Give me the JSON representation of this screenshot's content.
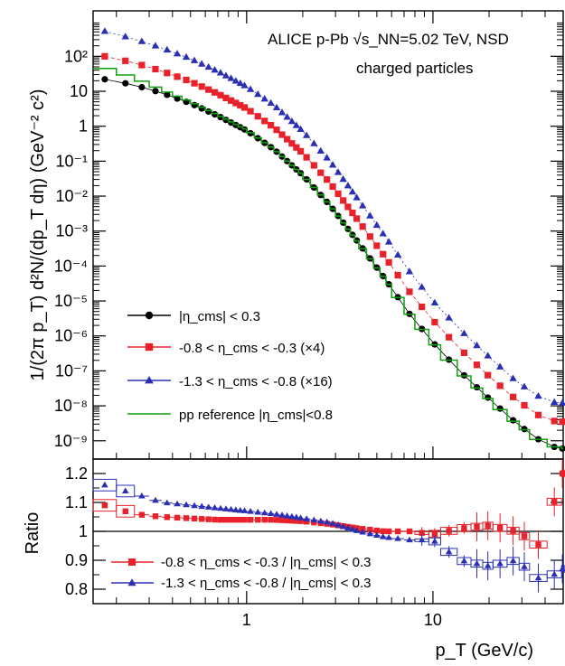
{
  "chart_data": [
    {
      "type": "scatter",
      "panel": "spectra",
      "annotation_lines": [
        "ALICE  p-Pb √s_NN=5.02 TeV, NSD",
        "charged particles"
      ],
      "ylabel": "1/(2π p_T) d²N/(dp_T dη) (GeV⁻² c²)",
      "yscale": "log",
      "xscale": "log",
      "xlim": [
        0.15,
        50
      ],
      "ylim": [
        3e-10,
        2000
      ],
      "y_tick_labels": [
        "10⁻⁹",
        "10⁻⁸",
        "10⁻⁷",
        "10⁻⁶",
        "10⁻⁵",
        "10⁻⁴",
        "10⁻³",
        "10⁻²",
        "10⁻¹",
        "1",
        "10",
        "10²"
      ],
      "legend_position": "lower-left",
      "x": [
        0.175,
        0.25,
        0.35,
        0.5,
        0.7,
        1.0,
        1.4,
        2.0,
        2.8,
        4.0,
        5.5,
        7.5,
        10,
        14,
        20,
        28,
        40,
        48
      ],
      "series": [
        {
          "name": "|η_cms| < 0.3",
          "color": "#000000",
          "marker": "circle",
          "y": [
            22,
            15,
            9,
            4.5,
            2,
            0.75,
            0.22,
            0.04,
            0.0055,
            0.00045,
            4.5e-05,
            4.2e-06,
            6.5e-07,
            9.5e-08,
            1.6e-08,
            3.2e-09,
            8e-10,
            6e-10
          ]
        },
        {
          "name": "-0.8 < η_cms < -0.3 (×4)",
          "color": "#e8212a",
          "marker": "square",
          "y": [
            100,
            65,
            38,
            19,
            8.5,
            3.2,
            0.93,
            0.17,
            0.024,
            0.0019,
            0.00019,
            1.8e-05,
            2.8e-06,
            4.2e-07,
            7e-08,
            1.5e-08,
            4e-09,
            3.5e-09
          ]
        },
        {
          "name": "-1.3 < η_cms < -0.8 (×16)",
          "color": "#2a2fb3",
          "marker": "triangle",
          "y": [
            520,
            310,
            175,
            85,
            37,
            13.5,
            4,
            0.72,
            0.1,
            0.0075,
            0.00073,
            6.8e-05,
            1e-05,
            1.5e-06,
            2.5e-07,
            5e-08,
            1.4e-08,
            1.2e-08
          ]
        },
        {
          "name": "pp reference |η_cms|<0.8",
          "color": "#11a211",
          "marker": "step-line",
          "y": [
            45,
            24,
            11,
            5,
            2.1,
            0.78,
            0.22,
            0.04,
            0.0055,
            0.00044,
            4.4e-05,
            4.1e-06,
            6.3e-07,
            9.2e-08,
            1.5e-08,
            3e-09,
            8e-10,
            6e-10
          ]
        }
      ]
    },
    {
      "type": "scatter",
      "panel": "ratio",
      "xlabel": "p_T (GeV/c)",
      "ylabel": "Ratio",
      "xscale": "log",
      "xlim": [
        0.15,
        50
      ],
      "ylim": [
        0.75,
        1.25
      ],
      "x_tick_labels": [
        "1",
        "10"
      ],
      "y_tick_labels": [
        "0.8",
        "0.9",
        "1",
        "1.1",
        "1.2"
      ],
      "reference_line": 1,
      "legend_position": "lower-left",
      "x": [
        0.175,
        0.25,
        0.35,
        0.5,
        0.7,
        1.0,
        1.4,
        2.0,
        2.8,
        4.0,
        5.5,
        7.5,
        10,
        14,
        20,
        28,
        40,
        48
      ],
      "series": [
        {
          "name": "-0.8 < η_cms < -0.3 / |η_cms| < 0.3",
          "color": "#e8212a",
          "marker": "square",
          "y": [
            1.09,
            1.06,
            1.05,
            1.045,
            1.04,
            1.04,
            1.04,
            1.035,
            1.025,
            1.01,
            1.0,
            1.0,
            0.99,
            1.01,
            1.02,
            1.0,
            0.94,
            1.2
          ]
        },
        {
          "name": "-1.3 < η_cms < -0.8 / |η_cms| < 0.3",
          "color": "#2a2fb3",
          "marker": "triangle",
          "y": [
            1.16,
            1.13,
            1.1,
            1.09,
            1.08,
            1.07,
            1.06,
            1.045,
            1.03,
            1.0,
            0.98,
            0.97,
            0.97,
            0.9,
            0.88,
            0.9,
            0.82,
            0.87
          ]
        }
      ]
    }
  ]
}
